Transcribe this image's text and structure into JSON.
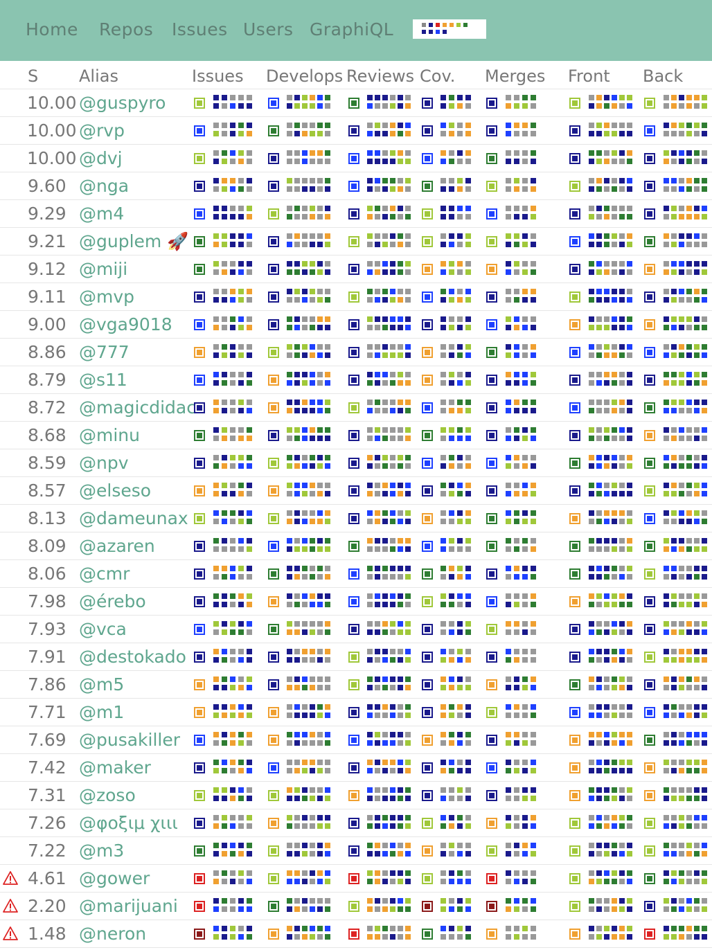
{
  "nav": {
    "items": [
      "Home",
      "Repos",
      "Issues",
      "Users",
      "GraphiQL"
    ],
    "logo_colors": [
      "#888888",
      "#1a1a8c",
      "#dd2222",
      "#f0a030",
      "#f0a030",
      "#a0c83a",
      "#2e7d32",
      "#1a1a8c",
      "#1a1a8c",
      "#1e40ff",
      "#1a1a8c"
    ]
  },
  "table": {
    "columns": [
      "S",
      "Alias",
      "Issues",
      "Develops",
      "Reviews",
      "Cov.",
      "Merges",
      "Front",
      "Back"
    ],
    "rows": [
      {
        "score": "10.00",
        "alias": "@guspyro",
        "warn": false
      },
      {
        "score": "10.00",
        "alias": "@rvp",
        "warn": false
      },
      {
        "score": "10.00",
        "alias": "@dvj",
        "warn": false
      },
      {
        "score": "9.60",
        "alias": "@nga",
        "warn": false
      },
      {
        "score": "9.29",
        "alias": "@m4",
        "warn": false
      },
      {
        "score": "9.21",
        "alias": "@guplem 🚀",
        "warn": false
      },
      {
        "score": "9.12",
        "alias": "@miji",
        "warn": false
      },
      {
        "score": "9.11",
        "alias": "@mvp",
        "warn": false
      },
      {
        "score": "9.00",
        "alias": "@vga9018",
        "warn": false
      },
      {
        "score": "8.86",
        "alias": "@777",
        "warn": false
      },
      {
        "score": "8.79",
        "alias": "@s11",
        "warn": false
      },
      {
        "score": "8.72",
        "alias": "@magicdidac",
        "warn": false
      },
      {
        "score": "8.68",
        "alias": "@minu",
        "warn": false
      },
      {
        "score": "8.59",
        "alias": "@npv",
        "warn": false
      },
      {
        "score": "8.57",
        "alias": "@elseso",
        "warn": false
      },
      {
        "score": "8.13",
        "alias": "@dameunax",
        "warn": false
      },
      {
        "score": "8.09",
        "alias": "@azaren",
        "warn": false
      },
      {
        "score": "8.06",
        "alias": "@cmr",
        "warn": false
      },
      {
        "score": "7.98",
        "alias": "@érebo",
        "warn": false
      },
      {
        "score": "7.93",
        "alias": "@vca",
        "warn": false
      },
      {
        "score": "7.91",
        "alias": "@destokado",
        "warn": false
      },
      {
        "score": "7.86",
        "alias": "@m5",
        "warn": false
      },
      {
        "score": "7.71",
        "alias": "@m1",
        "warn": false
      },
      {
        "score": "7.69",
        "alias": "@pusakiller",
        "warn": false
      },
      {
        "score": "7.42",
        "alias": "@maker",
        "warn": false
      },
      {
        "score": "7.31",
        "alias": "@zoso",
        "warn": false
      },
      {
        "score": "7.26",
        "alias": "@φοξιμ χιιι",
        "warn": false
      },
      {
        "score": "7.22",
        "alias": "@m3",
        "warn": false
      },
      {
        "score": "4.61",
        "alias": "@gower",
        "warn": true
      },
      {
        "score": "2.20",
        "alias": "@marijuani",
        "warn": true
      },
      {
        "score": "1.48",
        "alias": "@neron",
        "warn": true
      }
    ]
  },
  "colors": {
    "navy": "#1a1a8c",
    "blue": "#1e40ff",
    "green": "#2e7d32",
    "lime": "#a0c83a",
    "orange": "#f0a030",
    "red": "#dd2222",
    "darkred": "#8b1a1a",
    "gray": "#999999",
    "nav_bg": "#8ac4b0",
    "alias": "#5fa68e"
  },
  "icons": {
    "warning": "warning-triangle-icon",
    "rocket": "rocket-emoji"
  }
}
